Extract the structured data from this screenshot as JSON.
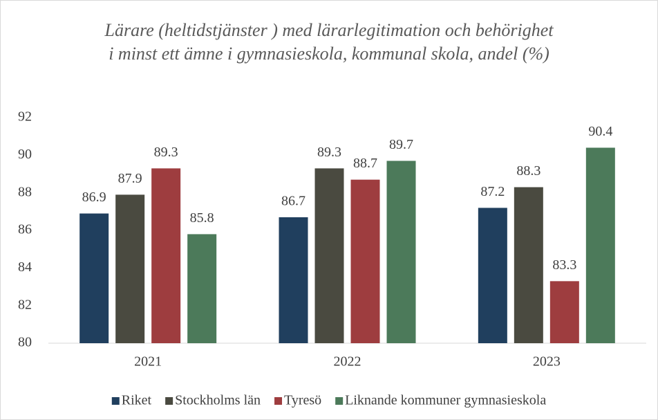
{
  "chart_data": {
    "type": "bar",
    "title": [
      "Lärare (heltidstjänster ) med lärarlegitimation och behörighet",
      "i minst ett ämne i gymnasieskola, kommunal skola, andel (%)"
    ],
    "categories": [
      "2021",
      "2022",
      "2023"
    ],
    "series": [
      {
        "name": "Riket",
        "color": "#203f5e",
        "values": [
          86.9,
          86.7,
          87.2
        ]
      },
      {
        "name": "Stockholms län",
        "color": "#4a4a40",
        "values": [
          87.9,
          89.3,
          88.3
        ]
      },
      {
        "name": "Tyresö",
        "color": "#9e3d3f",
        "values": [
          89.3,
          88.7,
          83.3
        ]
      },
      {
        "name": "Liknande kommuner gymnasieskola",
        "color": "#4c7a5a",
        "values": [
          85.8,
          89.7,
          90.4
        ]
      }
    ],
    "ylim": [
      80,
      92
    ],
    "yticks": [
      80,
      82,
      84,
      86,
      88,
      90,
      92
    ],
    "grid": false,
    "legend": "bottom"
  }
}
